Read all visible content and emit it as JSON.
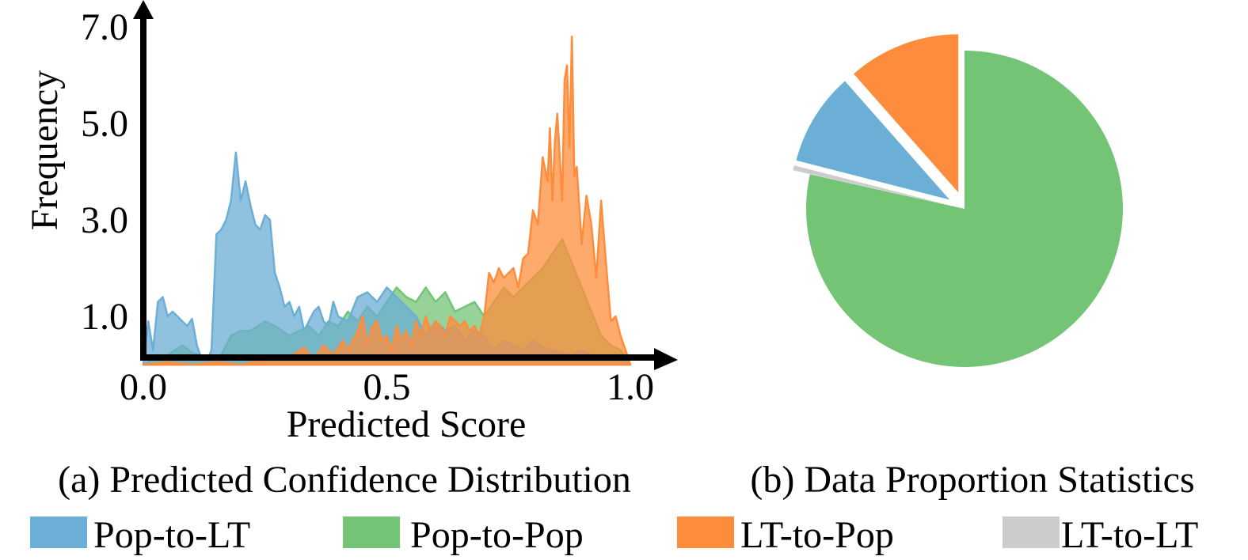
{
  "colors": {
    "pop_to_lt": "#6baed6",
    "pop_to_pop": "#74c476",
    "lt_to_pop": "#fd8d3c",
    "lt_to_lt": "#cccccc"
  },
  "legend": {
    "placement": "bottom",
    "items": [
      {
        "label": "Pop-to-LT",
        "color_key": "pop_to_lt"
      },
      {
        "label": "Pop-to-Pop",
        "color_key": "pop_to_pop"
      },
      {
        "label": "LT-to-Pop",
        "color_key": "lt_to_pop"
      },
      {
        "label": "LT-to-LT",
        "color_key": "lt_to_lt"
      }
    ]
  },
  "chart_data": [
    {
      "type": "area",
      "title": "(a) Predicted Confidence Distribution",
      "xlabel": "Predicted Score",
      "ylabel": "Frequency",
      "xlim": [
        0.0,
        1.1
      ],
      "ylim": [
        0.0,
        7.3
      ],
      "xticks": [
        {
          "value": 0.0,
          "label": "0.0"
        },
        {
          "value": 0.5,
          "label": "0.5"
        },
        {
          "value": 1.0,
          "label": "1.0"
        }
      ],
      "yticks": [
        {
          "value": 1.0,
          "label": "1.0"
        },
        {
          "value": 3.0,
          "label": "3.0"
        },
        {
          "value": 5.0,
          "label": "5.0"
        },
        {
          "value": 7.0,
          "label": "7.0"
        }
      ],
      "grid": false,
      "series": [
        {
          "name": "Pop-to-Pop",
          "color_key": "pop_to_pop",
          "x": [
            0.0,
            0.02,
            0.05,
            0.08,
            0.1,
            0.13,
            0.16,
            0.18,
            0.2,
            0.22,
            0.25,
            0.27,
            0.3,
            0.32,
            0.34,
            0.36,
            0.38,
            0.4,
            0.42,
            0.44,
            0.46,
            0.48,
            0.5,
            0.52,
            0.54,
            0.56,
            0.58,
            0.6,
            0.62,
            0.64,
            0.66,
            0.68,
            0.7,
            0.72,
            0.74,
            0.76,
            0.78,
            0.8,
            0.82,
            0.84,
            0.86,
            0.88,
            0.9,
            0.92,
            0.94,
            0.96,
            0.98,
            1.0
          ],
          "y": [
            0.0,
            0.1,
            0.2,
            0.4,
            0.25,
            0.15,
            0.2,
            0.6,
            0.7,
            0.7,
            0.9,
            0.8,
            0.6,
            0.7,
            0.8,
            0.6,
            0.9,
            0.8,
            1.1,
            0.9,
            1.2,
            1.0,
            1.3,
            1.6,
            1.4,
            1.3,
            1.6,
            1.3,
            1.5,
            1.1,
            1.2,
            1.3,
            1.0,
            1.3,
            1.6,
            1.4,
            1.6,
            1.8,
            2.0,
            2.3,
            2.6,
            2.1,
            1.6,
            1.1,
            0.6,
            0.4,
            0.3,
            0.0
          ]
        },
        {
          "name": "Pop-to-LT",
          "color_key": "pop_to_lt",
          "x": [
            0.0,
            0.01,
            0.02,
            0.03,
            0.04,
            0.05,
            0.06,
            0.07,
            0.08,
            0.09,
            0.1,
            0.11,
            0.12,
            0.13,
            0.14,
            0.15,
            0.16,
            0.17,
            0.18,
            0.19,
            0.2,
            0.21,
            0.22,
            0.23,
            0.24,
            0.25,
            0.26,
            0.27,
            0.28,
            0.29,
            0.3,
            0.31,
            0.32,
            0.33,
            0.34,
            0.35,
            0.36,
            0.37,
            0.38,
            0.39,
            0.4,
            0.42,
            0.44,
            0.46,
            0.48,
            0.5,
            0.52,
            0.54,
            0.56,
            0.58,
            0.6,
            0.62,
            0.64,
            0.66,
            0.68,
            0.7,
            0.72,
            0.74,
            0.76,
            0.78,
            0.8,
            0.82,
            0.84,
            0.86,
            0.88,
            0.9,
            0.92,
            0.94,
            0.96,
            0.98,
            1.0
          ],
          "y": [
            0.0,
            0.9,
            0.3,
            1.3,
            1.4,
            1.0,
            1.1,
            1.0,
            0.9,
            0.8,
            0.95,
            0.4,
            0.1,
            0.05,
            0.3,
            2.7,
            2.8,
            3.0,
            3.4,
            4.4,
            3.4,
            3.8,
            3.3,
            2.9,
            2.8,
            3.1,
            3.0,
            1.9,
            1.6,
            1.2,
            1.3,
            1.0,
            1.2,
            0.7,
            0.9,
            1.1,
            1.2,
            0.9,
            0.8,
            1.3,
            1.0,
            0.9,
            1.4,
            1.5,
            1.3,
            1.6,
            1.4,
            1.2,
            1.0,
            0.6,
            0.9,
            0.7,
            0.8,
            0.5,
            0.7,
            0.6,
            0.3,
            0.5,
            0.4,
            0.3,
            0.5,
            0.35,
            0.3,
            0.25,
            0.2,
            0.3,
            0.2,
            0.15,
            0.2,
            0.15,
            0.0
          ]
        },
        {
          "name": "LT-to-Pop",
          "color_key": "lt_to_pop",
          "x": [
            0.0,
            0.05,
            0.1,
            0.15,
            0.2,
            0.25,
            0.3,
            0.33,
            0.35,
            0.37,
            0.39,
            0.41,
            0.42,
            0.44,
            0.45,
            0.46,
            0.47,
            0.48,
            0.49,
            0.5,
            0.51,
            0.52,
            0.53,
            0.54,
            0.55,
            0.56,
            0.57,
            0.58,
            0.59,
            0.6,
            0.61,
            0.62,
            0.63,
            0.64,
            0.65,
            0.66,
            0.67,
            0.68,
            0.69,
            0.7,
            0.71,
            0.72,
            0.73,
            0.74,
            0.75,
            0.76,
            0.77,
            0.78,
            0.79,
            0.8,
            0.81,
            0.82,
            0.83,
            0.835,
            0.84,
            0.845,
            0.85,
            0.86,
            0.865,
            0.87,
            0.875,
            0.88,
            0.885,
            0.89,
            0.9,
            0.91,
            0.92,
            0.93,
            0.94,
            0.95,
            0.96,
            0.97,
            0.98,
            0.99,
            1.0
          ],
          "y": [
            0.0,
            0.05,
            0.0,
            0.05,
            0.0,
            0.1,
            0.15,
            0.35,
            0.1,
            0.4,
            0.2,
            0.5,
            0.3,
            0.7,
            1.0,
            0.4,
            0.8,
            0.9,
            0.5,
            0.6,
            0.3,
            0.8,
            0.5,
            0.7,
            0.4,
            0.9,
            0.6,
            1.0,
            0.7,
            0.9,
            0.8,
            0.6,
            1.0,
            0.9,
            0.8,
            0.9,
            0.7,
            0.8,
            0.6,
            1.0,
            1.9,
            1.7,
            2.0,
            1.8,
            1.9,
            2.0,
            1.6,
            2.2,
            2.3,
            3.2,
            2.9,
            4.3,
            3.8,
            4.9,
            3.4,
            4.6,
            5.2,
            3.4,
            5.9,
            6.2,
            4.5,
            6.8,
            3.9,
            4.1,
            2.5,
            3.5,
            2.9,
            1.8,
            3.4,
            2.1,
            0.9,
            1.0,
            0.6,
            0.3,
            0.0
          ]
        }
      ]
    },
    {
      "type": "pie",
      "title": "(b) Data Proportion Statistics",
      "start": "top",
      "direction": "clockwise",
      "explode": [
        0.0,
        0.2,
        0.2,
        0.2
      ],
      "slices": [
        {
          "label": "Pop-to-Pop",
          "value": 78.5,
          "color_key": "pop_to_pop"
        },
        {
          "label": "LT-to-LT",
          "value": 0.5,
          "color_key": "lt_to_lt"
        },
        {
          "label": "Pop-to-LT",
          "value": 9.5,
          "color_key": "pop_to_lt"
        },
        {
          "label": "LT-to-Pop",
          "value": 11.5,
          "color_key": "lt_to_pop"
        }
      ]
    }
  ]
}
